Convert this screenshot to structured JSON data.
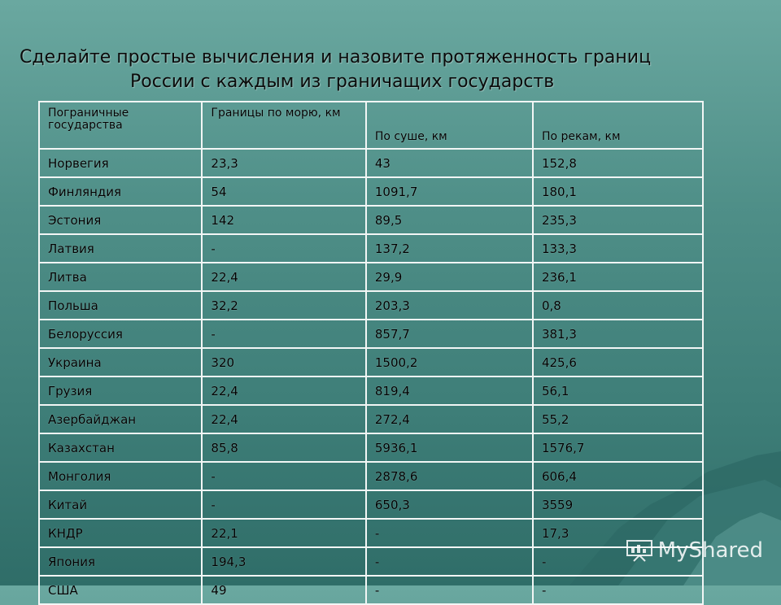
{
  "slide": {
    "title_line1": "Сделайте простые вычисления и назовите протяженность границ",
    "title_line2": "России с каждым из граничащих государств"
  },
  "table": {
    "headers": [
      "Пограничные государства",
      "Границы по морю, км",
      "По суше, км",
      "По рекам, км"
    ],
    "rows": [
      [
        "Норвегия",
        "23,3",
        "43",
        "152,8"
      ],
      [
        "Финляндия",
        "54",
        "1091,7",
        "180,1"
      ],
      [
        "Эстония",
        "142",
        "89,5",
        "235,3"
      ],
      [
        "Латвия",
        "-",
        "137,2",
        "133,3"
      ],
      [
        "Литва",
        "22,4",
        "29,9",
        "236,1"
      ],
      [
        "Польша",
        "32,2",
        "203,3",
        "0,8"
      ],
      [
        "Белоруссия",
        "-",
        "857,7",
        "381,3"
      ],
      [
        "Украина",
        "320",
        "1500,2",
        "425,6"
      ],
      [
        "Грузия",
        "22,4",
        "819,4",
        "56,1"
      ],
      [
        "Азербайджан",
        "22,4",
        "272,4",
        "55,2"
      ],
      [
        "Казахстан",
        "85,8",
        "5936,1",
        "1576,7"
      ],
      [
        "Монголия",
        "-",
        "2878,6",
        "606,4"
      ],
      [
        "Китай",
        "-",
        "650,3",
        "3559"
      ],
      [
        "КНДР",
        "22,1",
        "-",
        "17,3"
      ],
      [
        "Япония",
        "194,3",
        "-",
        "-"
      ],
      [
        "США",
        "49",
        "-",
        "-"
      ]
    ]
  },
  "watermark": {
    "text": "MyShared",
    "icon": "presentation-icon"
  },
  "colors": {
    "background": "#4f8f88",
    "grid": "#f2f6f5",
    "text": "#000000"
  }
}
